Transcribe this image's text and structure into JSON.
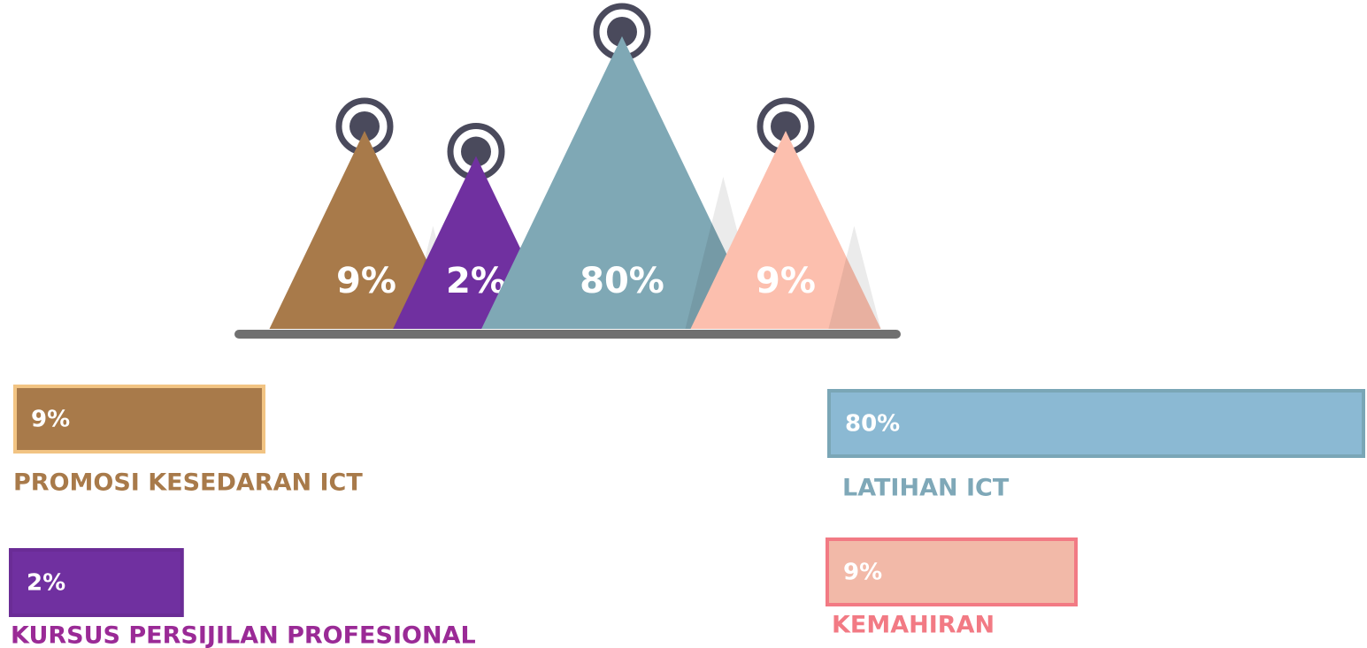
{
  "chart_data": {
    "type": "triangle",
    "categories": [
      "PROMOSI KESEDARAN ICT",
      "KURSUS PERSIJILAN PROFESIONAL",
      "LATIHAN ICT",
      "KEMAHIRAN"
    ],
    "values": [
      9,
      2,
      80,
      9
    ],
    "value_labels": [
      "9%",
      "2%",
      "80%",
      "9%"
    ],
    "colors": [
      "#a87a4a",
      "#7030a0",
      "#7fa8b5",
      "#fcbfae"
    ],
    "bar_colors": [
      "#a87a4a",
      "#7030a0",
      "#8bb9d3",
      "#f2b9a8"
    ],
    "border_colors": [
      "#f2c483",
      "#6a2c96",
      "#7aa6b6",
      "#f27a84"
    ],
    "label_colors": [
      "#a87a4a",
      "#9a2a96",
      "#7fa8b8",
      "#f27a84"
    ]
  }
}
